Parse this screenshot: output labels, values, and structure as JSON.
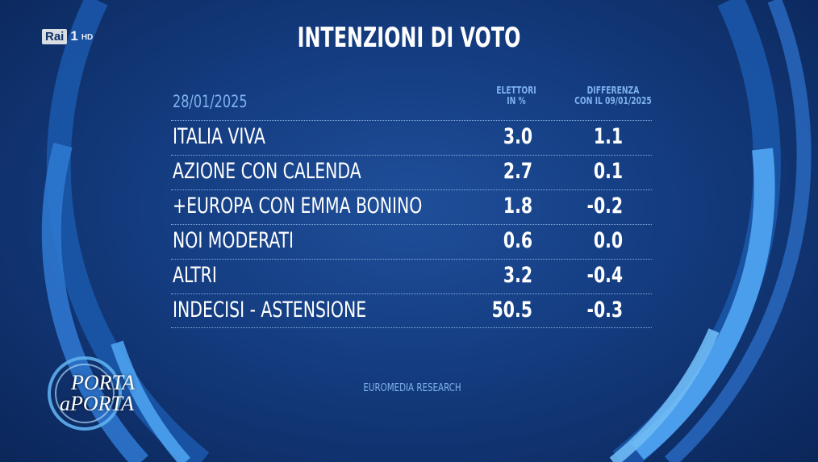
{
  "broadcaster": {
    "name": "Rai",
    "channel": "1",
    "quality": "HD"
  },
  "title": "INTENZIONI DI VOTO",
  "date": "28/01/2025",
  "columns": {
    "share": "ELETTORI\nIN %",
    "difference": "DIFFERENZA\nCON IL 09/01/2025"
  },
  "rows": [
    {
      "party": "ITALIA VIVA",
      "value": "3.0",
      "diff": "1.1"
    },
    {
      "party": "AZIONE CON CALENDA",
      "value": "2.7",
      "diff": "0.1"
    },
    {
      "party": "+EUROPA CON EMMA BONINO",
      "value": "1.8",
      "diff": "-0.2"
    },
    {
      "party": "NOI MODERATI",
      "value": "0.6",
      "diff": "0.0"
    },
    {
      "party": "ALTRI",
      "value": "3.2",
      "diff": "-0.4"
    },
    {
      "party": "INDECISI - ASTENSIONE",
      "value": "50.5",
      "diff": "-0.3"
    }
  ],
  "source": "EUROMEDIA RESEARCH",
  "show_logo": {
    "line1": "PORTA",
    "line2": "aPORTA"
  },
  "colors": {
    "background": "#143c80",
    "accent": "#7fb2ef",
    "ring": "#2e78d0"
  }
}
